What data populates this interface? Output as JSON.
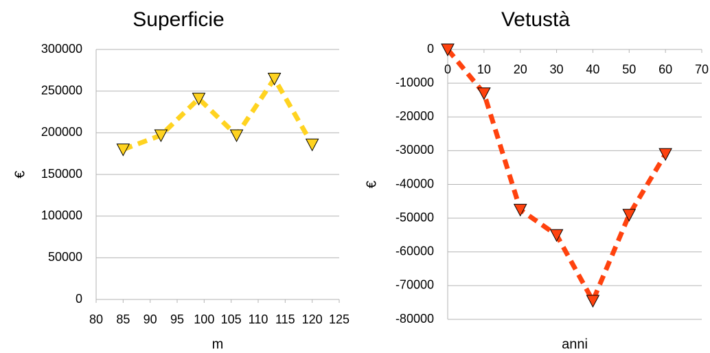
{
  "chart_data": [
    {
      "type": "line",
      "title": "Superficie",
      "x_label": "m",
      "y_label": "€",
      "series": [
        {
          "name": "Superficie",
          "color": "#ffd320",
          "x": [
            85,
            92,
            99,
            106,
            113,
            120
          ],
          "values": [
            180000,
            197000,
            241000,
            197000,
            265000,
            186000
          ]
        }
      ],
      "xlim": [
        80,
        125
      ],
      "xticks": [
        80,
        85,
        90,
        95,
        100,
        105,
        110,
        115,
        120,
        125
      ],
      "ylim": [
        0,
        300000
      ],
      "yticks": [
        0,
        50000,
        100000,
        150000,
        200000,
        250000,
        300000
      ],
      "grid": true
    },
    {
      "type": "line",
      "title": "Vetustà",
      "x_label": "anni",
      "y_label": "€",
      "series": [
        {
          "name": "Vetustà",
          "color": "#ff420e",
          "x": [
            0,
            10,
            20,
            30,
            40,
            50,
            60
          ],
          "values": [
            0,
            -13000,
            -47500,
            -55000,
            -74500,
            -49000,
            -31000
          ]
        }
      ],
      "xlim": [
        0,
        70
      ],
      "xticks": [
        0,
        10,
        20,
        30,
        40,
        50,
        60,
        70
      ],
      "ylim": [
        -80000,
        0
      ],
      "yticks": [
        -80000,
        -70000,
        -60000,
        -50000,
        -40000,
        -30000,
        -20000,
        -10000,
        0
      ],
      "grid": true
    }
  ]
}
